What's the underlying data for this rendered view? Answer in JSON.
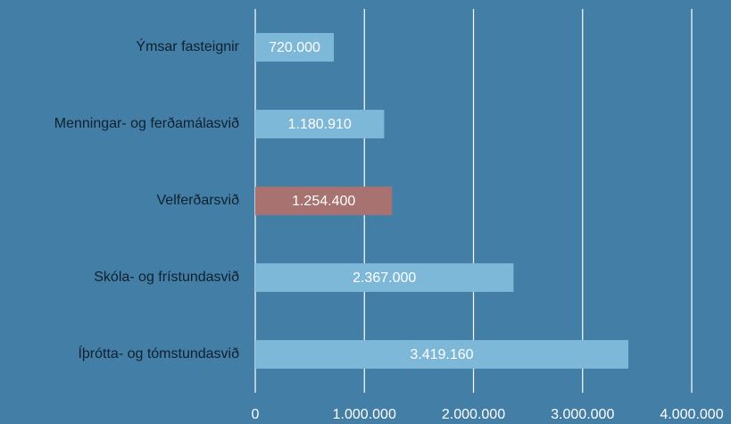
{
  "chart_data": {
    "type": "bar",
    "orientation": "horizontal",
    "categories": [
      "Ýmsar fasteignir",
      "Menningar- og ferðamálasvið",
      "Velferðarsvið",
      "Skóla- og frístundasvið",
      "Íþrótta- og tómstundasvið"
    ],
    "values": [
      720000,
      1180910,
      1254400,
      2367000,
      3419160
    ],
    "value_labels": [
      "720.000",
      "1.180.910",
      "1.254.400",
      "2.367.000",
      "3.419.160"
    ],
    "colors": [
      "#7db8d8",
      "#7db8d8",
      "#a7726f",
      "#7db8d8",
      "#7db8d8"
    ],
    "xlim": [
      0,
      4000000
    ],
    "xticks": [
      0,
      {
        "value": 1000000,
        "label": "1.000.000"
      },
      {
        "value": 2000000,
        "label": "2.000.000"
      },
      {
        "value": 3000000,
        "label": "3.000.000"
      },
      {
        "value": 4000000,
        "label": "4.000.000"
      }
    ],
    "grid": true
  }
}
